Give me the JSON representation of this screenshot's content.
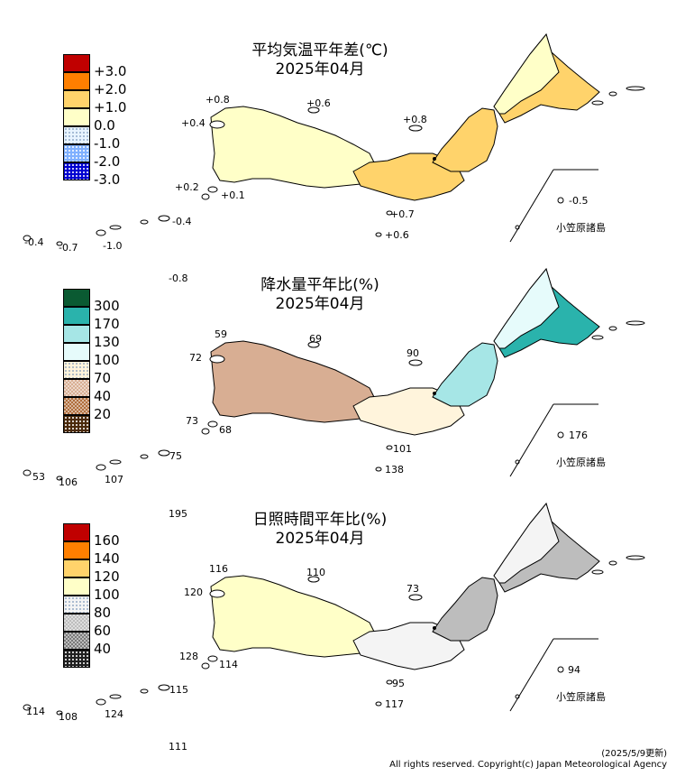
{
  "panels": [
    {
      "title_line1": "平均気温平年差(℃)",
      "title_line2": "2025年04月",
      "legend": [
        {
          "label": "+3.0",
          "color": "#c00000",
          "pattern": "none"
        },
        {
          "label": "+2.0",
          "color": "#ff7f00",
          "pattern": "none"
        },
        {
          "label": "+1.0",
          "color": "#ffd36b",
          "pattern": "none"
        },
        {
          "label": "0.0",
          "color": "#ffffc8",
          "pattern": "none"
        },
        {
          "label": "-1.0",
          "color": "#e8f4ff",
          "pattern": "dots-light"
        },
        {
          "label": "-2.0",
          "color": "#7fb0ff",
          "pattern": "dots"
        },
        {
          "label": "-3.0",
          "color": "#0000d0",
          "pattern": "dots"
        }
      ],
      "station_labels": [
        "+0.8",
        "+0.6",
        "+0.4",
        "+0.8",
        "+0.2",
        "+0.1",
        "+0.7",
        "+0.6",
        "-0.4",
        "-0.4",
        "-0.7",
        "-1.0",
        "-0.8",
        "-0.5"
      ],
      "ogasawara_label": "小笠原諸島",
      "region_colors": {
        "hokkaido": "#ffd36b",
        "hokkaido_coast": "#ffffc8",
        "tohoku": "#ffd36b",
        "kanto": "#ffd36b",
        "west": "#ffffc8"
      }
    },
    {
      "title_line1": "降水量平年比(%)",
      "title_line2": "2025年04月",
      "legend": [
        {
          "label": "300",
          "color": "#0a5a32",
          "pattern": "none"
        },
        {
          "label": "170",
          "color": "#2ab3ac",
          "pattern": "none"
        },
        {
          "label": "130",
          "color": "#a6e6e6",
          "pattern": "none"
        },
        {
          "label": "100",
          "color": "#e6fbfb",
          "pattern": "none"
        },
        {
          "label": "70",
          "color": "#fff4dc",
          "pattern": "dots-light"
        },
        {
          "label": "40",
          "color": "#d8ae93",
          "pattern": "checker"
        },
        {
          "label": "20",
          "color": "#b06e3c",
          "pattern": "checker"
        },
        {
          "label": "",
          "color": "#4a2a0a",
          "pattern": "dots"
        }
      ],
      "station_labels": [
        "59",
        "69",
        "72",
        "90",
        "73",
        "68",
        "101",
        "138",
        "53",
        "106",
        "107",
        "75",
        "176"
      ],
      "ogasawara_label": "小笠原諸島",
      "region_colors": {
        "hokkaido": "#2ab3ac",
        "hokkaido_coast": "#e6fbfb",
        "tohoku": "#a6e6e6",
        "kanto": "#fff4dc",
        "west": "#d8ae93"
      }
    },
    {
      "title_line1": "日照時間平年比(%)",
      "title_line2": "2025年04月",
      "legend": [
        {
          "label": "160",
          "color": "#c00000",
          "pattern": "none"
        },
        {
          "label": "140",
          "color": "#ff7f00",
          "pattern": "none"
        },
        {
          "label": "120",
          "color": "#ffd36b",
          "pattern": "none"
        },
        {
          "label": "100",
          "color": "#ffffc8",
          "pattern": "none"
        },
        {
          "label": "80",
          "color": "#f4f4f4",
          "pattern": "dots-light"
        },
        {
          "label": "60",
          "color": "#bdbdbd",
          "pattern": "checker"
        },
        {
          "label": "40",
          "color": "#7a7a7a",
          "pattern": "checker"
        },
        {
          "label": "",
          "color": "#202020",
          "pattern": "dots"
        }
      ],
      "station_labels": [
        "195",
        "116",
        "110",
        "120",
        "73",
        "128",
        "114",
        "95",
        "117",
        "114",
        "108",
        "124",
        "115",
        "111",
        "94"
      ],
      "ogasawara_label": "小笠原諸島",
      "region_colors": {
        "hokkaido": "#bdbdbd",
        "hokkaido_coast": "#f4f4f4",
        "tohoku": "#bdbdbd",
        "kanto": "#f4f4f4",
        "west": "#ffffc8"
      }
    }
  ],
  "footer": {
    "updated": "(2025/5/9更新)",
    "copyright": "All rights reserved. Copyright(c) Japan Meteorological Agency"
  }
}
